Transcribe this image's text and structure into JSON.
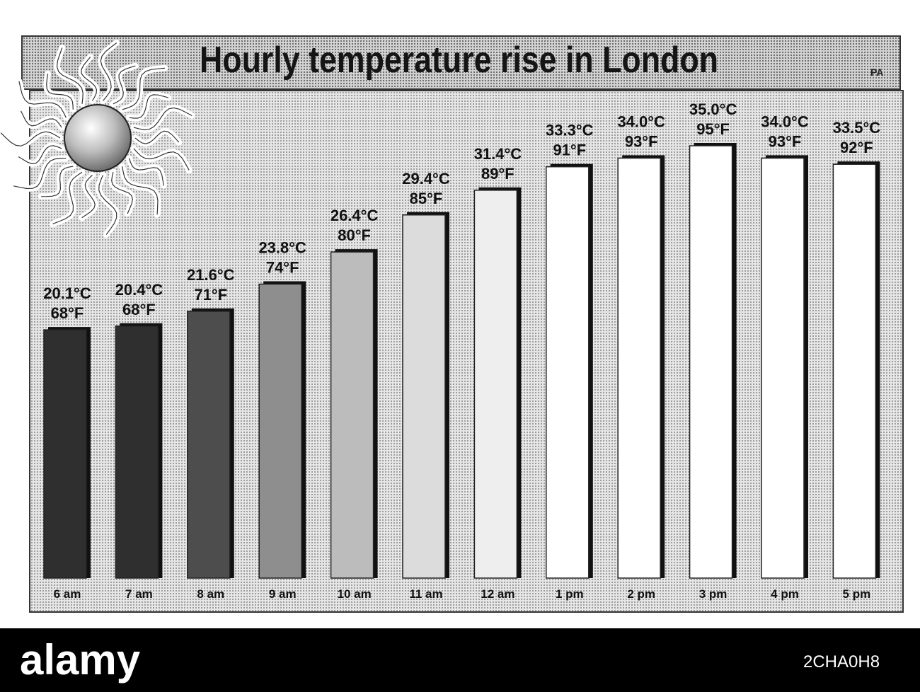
{
  "chart_data": {
    "type": "bar",
    "title": "Hourly temperature rise in London",
    "source_credit": "PA",
    "categories": [
      "6 am",
      "7 am",
      "8 am",
      "9 am",
      "10 am",
      "11 am",
      "12 am",
      "1 pm",
      "2 pm",
      "3 pm",
      "4 pm",
      "5 pm"
    ],
    "series": [
      {
        "values": [
          20.1,
          20.4,
          21.6,
          23.8,
          26.4,
          29.4,
          31.4,
          33.3,
          34.0,
          35.0,
          34.0,
          33.5
        ],
        "fahrenheit": [
          68,
          68,
          71,
          74,
          80,
          85,
          89,
          91,
          93,
          95,
          93,
          92
        ]
      }
    ],
    "value_labels_c": [
      "20.1°C",
      "20.4°C",
      "21.6°C",
      "23.8°C",
      "26.4°C",
      "29.4°C",
      "31.4°C",
      "33.3°C",
      "34.0°C",
      "35.0°C",
      "34.0°C",
      "33.5°C"
    ],
    "value_labels_f": [
      "68°F",
      "68°F",
      "71°F",
      "74°F",
      "80°F",
      "85°F",
      "89°F",
      "91°F",
      "93°F",
      "95°F",
      "93°F",
      "92°F"
    ],
    "bar_colors": [
      "#2f2f2f",
      "#2f2f2f",
      "#4d4d4d",
      "#8e8e8e",
      "#bcbcbc",
      "#dcdcdc",
      "#eeeeee",
      "#ffffff",
      "#ffffff",
      "#ffffff",
      "#ffffff",
      "#ffffff"
    ],
    "ylim": [
      0,
      35.0
    ],
    "grid": false,
    "legend": "none"
  },
  "decoration": {
    "sun_icon": "sun-icon"
  },
  "watermark": {
    "brand": "alamy",
    "image_id": "2CHA0H8"
  }
}
